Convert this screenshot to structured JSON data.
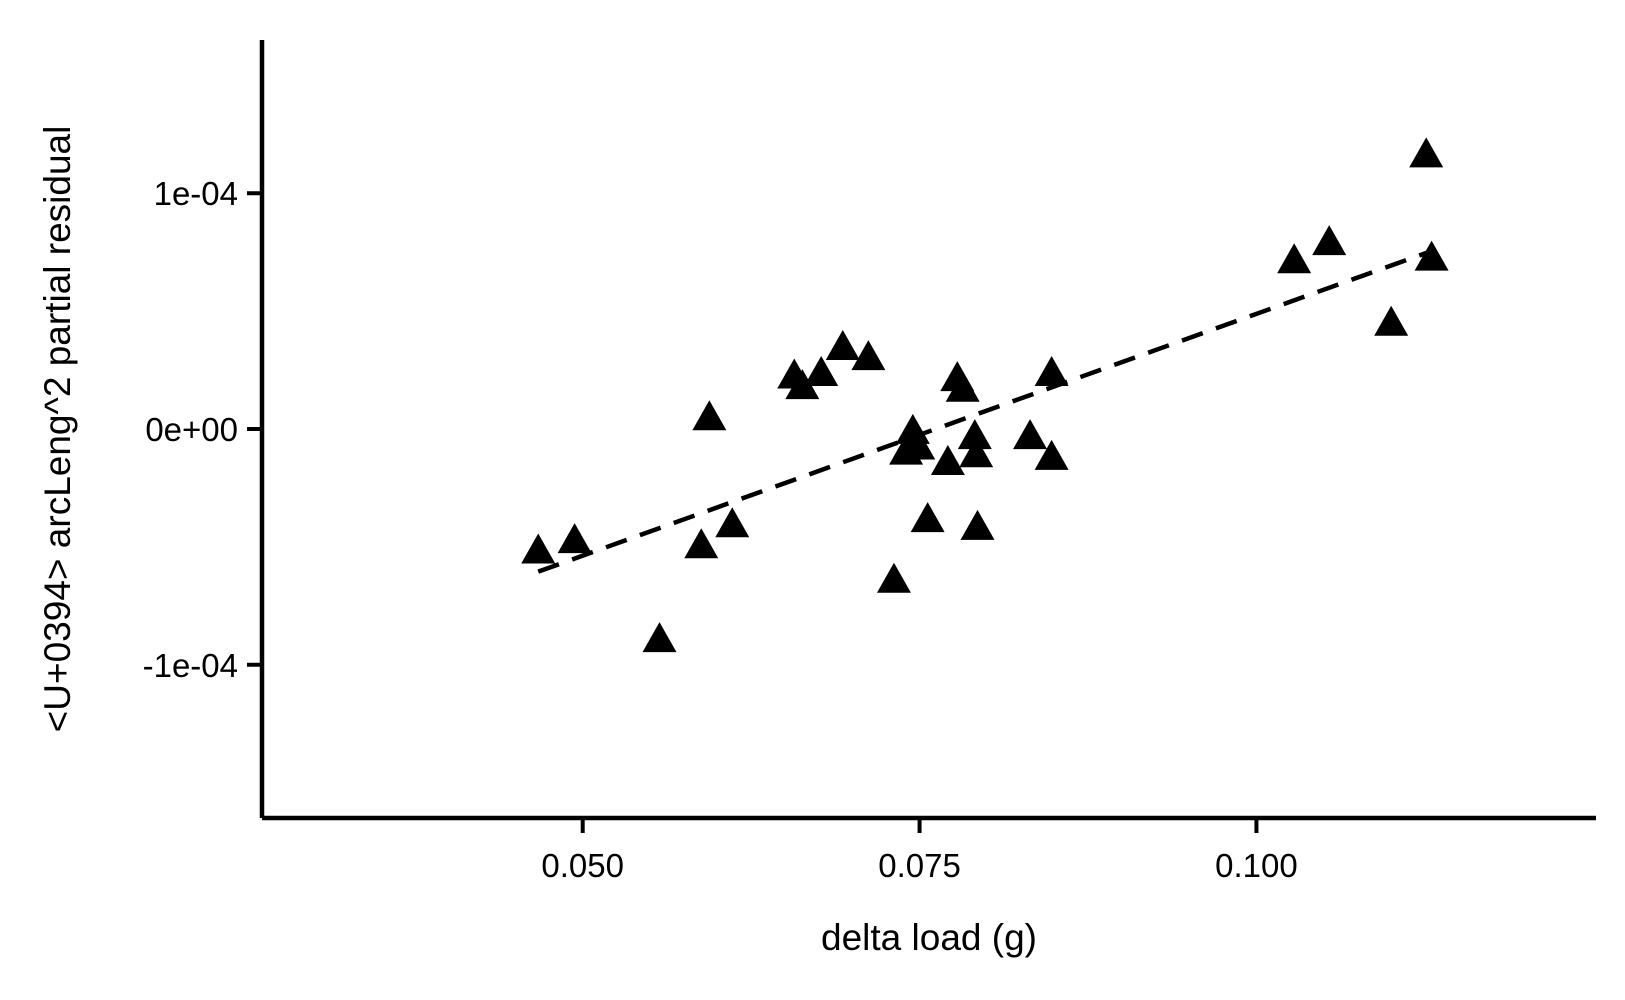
{
  "chart_data": {
    "type": "scatter",
    "title": "",
    "xlabel": "delta load (g)",
    "ylabel": "<U+0394> arcLeng^2 partial residual",
    "xlim": [
      0.0262,
      0.1252
    ],
    "ylim": [
      -0.000165,
      0.000165
    ],
    "x_ticks": [
      {
        "value": 0.05,
        "label": "0.050"
      },
      {
        "value": 0.075,
        "label": "0.075"
      },
      {
        "value": 0.1,
        "label": "0.100"
      }
    ],
    "y_ticks": [
      {
        "value": -0.0001,
        "label": "-1e-04"
      },
      {
        "value": 0,
        "label": "0e+00"
      },
      {
        "value": 0.0001,
        "label": "1e-04"
      }
    ],
    "grid": false,
    "legend": "none",
    "marker": "filled-triangle",
    "marker_color": "#000000",
    "points": [
      {
        "x": 0.0467,
        "y": -5.22e-05
      },
      {
        "x": 0.0494,
        "y": -4.78e-05
      },
      {
        "x": 0.0557,
        "y": -8.98e-05
      },
      {
        "x": 0.0588,
        "y": -5e-05
      },
      {
        "x": 0.0594,
        "y": 4.3e-06
      },
      {
        "x": 0.0611,
        "y": -4.11e-05
      },
      {
        "x": 0.0657,
        "y": 2.2e-05
      },
      {
        "x": 0.0663,
        "y": 1.75e-05
      },
      {
        "x": 0.0677,
        "y": 2.31e-05
      },
      {
        "x": 0.0693,
        "y": 3.41e-05
      },
      {
        "x": 0.0712,
        "y": 2.98e-05
      },
      {
        "x": 0.0731,
        "y": -6.46e-05
      },
      {
        "x": 0.074,
        "y": -1.03e-05
      },
      {
        "x": 0.0745,
        "y": -1.5e-06
      },
      {
        "x": 0.0749,
        "y": -8.1e-06
      },
      {
        "x": 0.0756,
        "y": -3.89e-05
      },
      {
        "x": 0.0771,
        "y": -1.47e-05
      },
      {
        "x": 0.0778,
        "y": 2.09e-05
      },
      {
        "x": 0.0782,
        "y": 1.64e-05
      },
      {
        "x": 0.0791,
        "y": -3.7e-06
      },
      {
        "x": 0.0792,
        "y": -1.14e-05
      },
      {
        "x": 0.0793,
        "y": -4.22e-05
      },
      {
        "x": 0.0832,
        "y": -3.7e-06
      },
      {
        "x": 0.0848,
        "y": 2.31e-05
      },
      {
        "x": 0.0848,
        "y": -1.25e-05
      },
      {
        "x": 0.1028,
        "y": 7.09e-05
      },
      {
        "x": 0.1054,
        "y": 7.86e-05
      },
      {
        "x": 0.11,
        "y": 4.44e-05
      },
      {
        "x": 0.1126,
        "y": 0.0001158
      },
      {
        "x": 0.113,
        "y": 7.2e-05
      }
    ],
    "fit_line": {
      "style": "dashed",
      "color": "#000000",
      "x": [
        0.0467,
        0.113
      ],
      "y": [
        -6.05e-05,
        7.55e-05
      ]
    }
  }
}
